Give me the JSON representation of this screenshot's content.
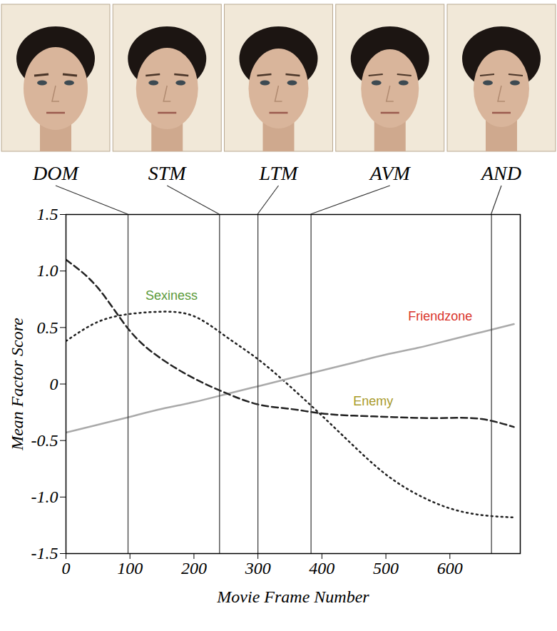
{
  "chart_data": {
    "type": "line",
    "x_label": "Movie Frame Number",
    "y_label": "Mean Factor Score",
    "x": [
      0,
      50,
      100,
      150,
      200,
      250,
      300,
      350,
      400,
      450,
      500,
      550,
      600,
      650,
      700
    ],
    "series": [
      {
        "name": "Sexiness",
        "color": "#222222",
        "line_style": "dotted",
        "values": [
          0.38,
          0.55,
          0.62,
          0.64,
          0.6,
          0.42,
          0.22,
          -0.02,
          -0.28,
          -0.55,
          -0.8,
          -0.98,
          -1.1,
          -1.16,
          -1.18
        ]
      },
      {
        "name": "Friendzone",
        "color": "#aaaaaa",
        "line_style": "solid",
        "values": [
          -0.43,
          -0.36,
          -0.29,
          -0.22,
          -0.16,
          -0.09,
          -0.02,
          0.05,
          0.12,
          0.19,
          0.26,
          0.32,
          0.39,
          0.46,
          0.53
        ]
      },
      {
        "name": "Enemy",
        "color": "#222222",
        "line_style": "dashed",
        "values": [
          1.1,
          0.85,
          0.47,
          0.22,
          0.05,
          -0.08,
          -0.18,
          -0.22,
          -0.26,
          -0.28,
          -0.29,
          -0.3,
          -0.3,
          -0.31,
          -0.38
        ]
      }
    ],
    "markers": [
      {
        "label": "DOM",
        "x": 97
      },
      {
        "label": "STM",
        "x": 240
      },
      {
        "label": "LTM",
        "x": 300
      },
      {
        "label": "AVM",
        "x": 383
      },
      {
        "label": "AND",
        "x": 665
      }
    ],
    "xlim": [
      0,
      710
    ],
    "ylim": [
      -1.5,
      1.5
    ],
    "xticks": [
      0,
      100,
      200,
      300,
      400,
      500,
      600
    ],
    "yticks": [
      -1.5,
      {
        "value": -1,
        "label": "-1.0"
      },
      -0.5,
      0,
      0.5,
      {
        "value": 1,
        "label": "1.0"
      },
      1.5
    ],
    "grid": false
  }
}
